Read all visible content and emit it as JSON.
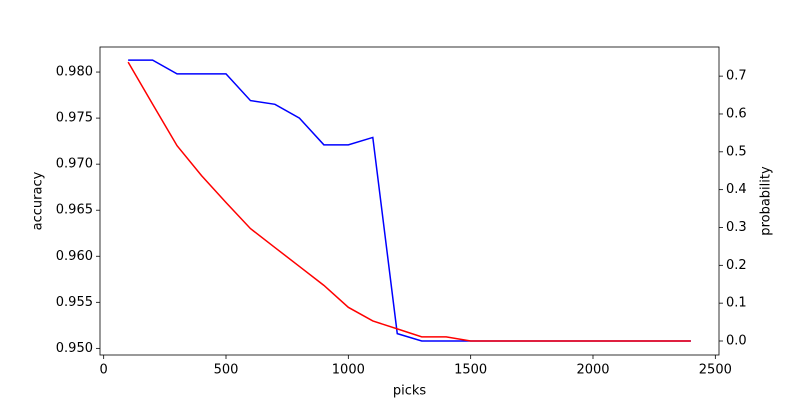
{
  "chart_data": {
    "type": "line",
    "x_label": "picks",
    "y_label": "accuracy",
    "y2_label": "probability",
    "x": [
      100,
      200,
      300,
      400,
      500,
      600,
      700,
      800,
      900,
      1000,
      1100,
      1200,
      1300,
      1400,
      1500,
      1600,
      1700,
      1800,
      1900,
      2000,
      2100,
      2200,
      2300,
      2400
    ],
    "series": [
      {
        "name": "accuracy",
        "color": "#0000ff",
        "axis": "y",
        "values": [
          0.9813,
          0.9813,
          0.9798,
          0.9798,
          0.9798,
          0.9769,
          0.9765,
          0.975,
          0.9721,
          0.9721,
          0.9729,
          0.9516,
          0.9508,
          0.9508,
          0.9508,
          0.9508,
          0.9508,
          0.9508,
          0.9508,
          0.9508,
          0.9508,
          0.9508,
          0.9508,
          0.9508
        ]
      },
      {
        "name": "probability",
        "color": "#ff0000",
        "axis": "y2",
        "values": [
          0.737,
          0.626,
          0.516,
          0.437,
          0.366,
          0.297,
          0.247,
          0.197,
          0.147,
          0.089,
          0.053,
          0.032,
          0.011,
          0.011,
          0,
          0,
          0,
          0,
          0,
          0,
          0,
          0,
          0,
          0
        ]
      }
    ],
    "xlim": [
      -15,
      2515
    ],
    "xticks": [
      0,
      500,
      1000,
      1500,
      2000,
      2500
    ],
    "ylim": [
      0.94928,
      0.98272
    ],
    "yticks": [
      {
        "value": 0.95,
        "label": "0.950"
      },
      {
        "value": 0.955,
        "label": "0.955"
      },
      {
        "value": 0.96,
        "label": "0.960"
      },
      {
        "value": 0.965,
        "label": "0.965"
      },
      {
        "value": 0.97,
        "label": "0.970"
      },
      {
        "value": 0.975,
        "label": "0.975"
      },
      {
        "value": 0.98,
        "label": "0.980"
      }
    ],
    "y2lim": [
      -0.037,
      0.777
    ],
    "y2ticks": [
      {
        "value": 0,
        "label": "0.0"
      },
      {
        "value": 0.1,
        "label": "0.1"
      },
      {
        "value": 0.2,
        "label": "0.2"
      },
      {
        "value": 0.3,
        "label": "0.3"
      },
      {
        "value": 0.4,
        "label": "0.4"
      },
      {
        "value": 0.5,
        "label": "0.5"
      },
      {
        "value": 0.6,
        "label": "0.6"
      },
      {
        "value": 0.7,
        "label": "0.7"
      }
    ],
    "grid": false
  }
}
